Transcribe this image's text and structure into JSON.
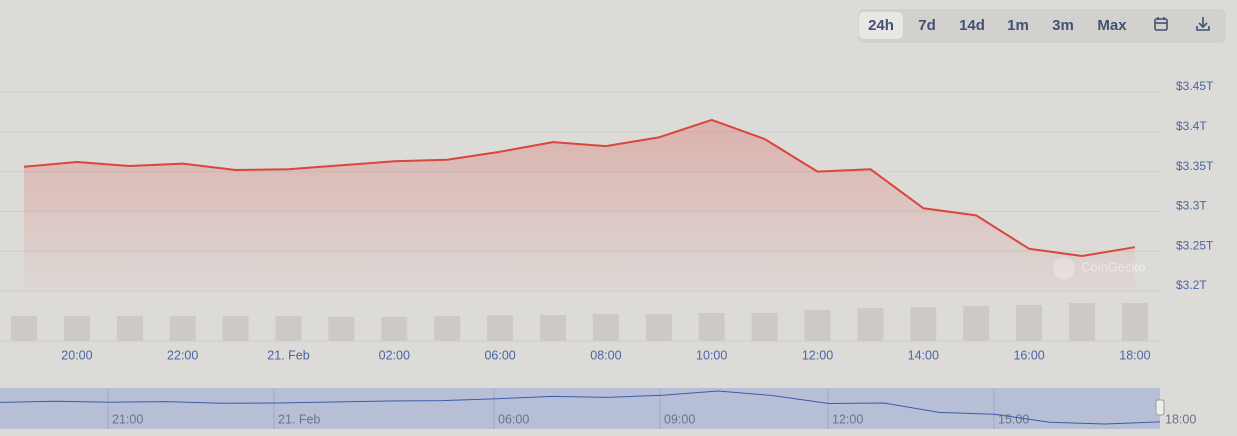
{
  "controls": {
    "ranges": [
      "24h",
      "7d",
      "14d",
      "1m",
      "3m",
      "Max"
    ],
    "active": 0
  },
  "watermark": "CoinGecko",
  "chart_data": {
    "type": "line",
    "categories": [
      null,
      "20:00",
      null,
      "22:00",
      null,
      "21. Feb",
      null,
      "02:00",
      null,
      "06:00",
      null,
      "08:00",
      null,
      "10:00",
      null,
      "12:00",
      null,
      "14:00",
      null,
      "16:00",
      null,
      "18:00"
    ],
    "series": [
      {
        "color": "#d9463e",
        "values": [
          3.356,
          3.362,
          3.357,
          3.36,
          3.352,
          3.353,
          3.358,
          3.363,
          3.365,
          3.375,
          3.387,
          3.382,
          3.393,
          3.415,
          3.391,
          3.35,
          3.353,
          3.304,
          3.295,
          3.253,
          3.244,
          3.255
        ]
      }
    ],
    "volume": {
      "color": "#cdc9c6",
      "values": [
        25,
        25,
        25,
        25,
        25,
        25,
        24,
        24,
        25,
        26,
        26,
        27,
        27,
        28,
        28,
        31,
        33,
        34,
        35,
        36,
        38,
        38
      ]
    },
    "ylim": [
      3.2,
      3.45
    ],
    "yticks": [
      {
        "value": 3.2,
        "label": "$3.2T"
      },
      {
        "value": 3.25,
        "label": "$3.25T"
      },
      {
        "value": 3.3,
        "label": "$3.3T"
      },
      {
        "value": 3.35,
        "label": "$3.35T"
      },
      {
        "value": 3.4,
        "label": "$3.4T"
      },
      {
        "value": 3.45,
        "label": "$3.45T"
      }
    ],
    "grid": true,
    "navigator": {
      "labels": [
        "21:00",
        "21. Feb",
        "06:00",
        "09:00",
        "12:00",
        "15:00",
        "18:00"
      ]
    }
  }
}
